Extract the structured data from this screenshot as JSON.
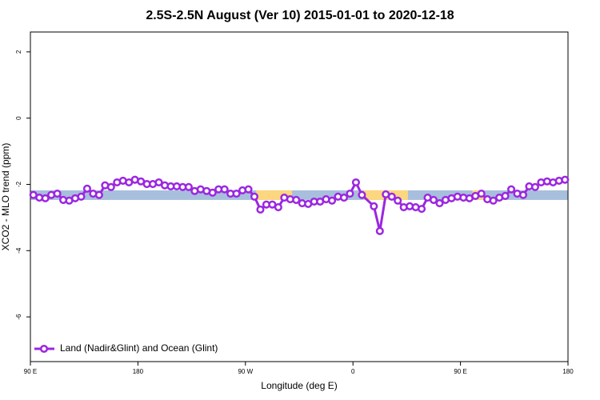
{
  "chart_data": {
    "type": "line",
    "title": "2.5S-2.5N August (Ver 10)   2015-01-01 to 2020-12-18",
    "x_label": "Longitude (deg E)",
    "y_label": "XCO2 - MLO trend (ppm)",
    "xlim": [
      90,
      540
    ],
    "ylim": [
      -7.35,
      2.6
    ],
    "xticks": [
      {
        "value": 90,
        "label": "90 E"
      },
      180,
      {
        "value": 270,
        "label": "90 W"
      },
      {
        "value": 360,
        "label": "0"
      },
      {
        "value": 450,
        "label": "90 E"
      },
      {
        "value": 540,
        "label": "180"
      }
    ],
    "yticks": [
      -6,
      -4,
      -2,
      0,
      2
    ],
    "band": {
      "ylim": [
        -2.18,
        -2.47
      ],
      "color": "#a7bfdc"
    },
    "highlight": {
      "color": "#fcd77f",
      "x_ranges": [
        [
          279,
          309
        ],
        [
          369,
          406
        ],
        [
          460,
          470
        ]
      ]
    },
    "legend": "bottom-left",
    "series": [
      {
        "name": "Land (Nadir&Glint) and Ocean (Glint)",
        "color": "#9b27e0",
        "x": [
          92.5,
          97.5,
          102.5,
          107.5,
          112.5,
          117.5,
          122.5,
          127.5,
          132.5,
          137.5,
          142.5,
          147.5,
          152.5,
          157.5,
          162.5,
          167.5,
          172.5,
          177.5,
          182.5,
          187.5,
          192.5,
          197.5,
          202.5,
          207.5,
          212.5,
          217.5,
          222.5,
          227.5,
          232.5,
          237.5,
          242.5,
          247.5,
          252.5,
          257.5,
          262.5,
          267.5,
          272.5,
          277.5,
          282.5,
          287.5,
          292.5,
          297.5,
          302.5,
          307.5,
          312.5,
          317.5,
          322.5,
          327.5,
          332.5,
          337.5,
          342.5,
          347.5,
          352.5,
          357.5,
          362.5,
          367.5,
          377.5,
          382.5,
          387.5,
          392.5,
          397.5,
          402.5,
          407.5,
          412.5,
          417.5,
          422.5,
          427.5,
          432.5,
          437.5,
          442.5,
          447.5,
          452.5,
          457.5,
          462.5,
          467.5,
          472.5,
          477.5,
          482.5,
          487.5,
          492.5,
          497.5,
          502.5,
          507.5,
          512.5,
          517.5,
          522.5,
          527.5,
          532.5,
          537.5
        ],
        "values": [
          -2.32,
          -2.4,
          -2.42,
          -2.32,
          -2.28,
          -2.47,
          -2.49,
          -2.42,
          -2.37,
          -2.13,
          -2.28,
          -2.32,
          -2.03,
          -2.08,
          -1.94,
          -1.89,
          -1.94,
          -1.86,
          -1.91,
          -1.99,
          -1.99,
          -1.94,
          -2.03,
          -2.06,
          -2.06,
          -2.08,
          -2.08,
          -2.2,
          -2.15,
          -2.2,
          -2.25,
          -2.15,
          -2.15,
          -2.28,
          -2.28,
          -2.18,
          -2.15,
          -2.37,
          -2.76,
          -2.61,
          -2.61,
          -2.69,
          -2.4,
          -2.45,
          -2.47,
          -2.57,
          -2.59,
          -2.52,
          -2.52,
          -2.45,
          -2.49,
          -2.37,
          -2.4,
          -2.28,
          -1.94,
          -2.32,
          -2.66,
          -3.41,
          -2.3,
          -2.37,
          -2.49,
          -2.69,
          -2.66,
          -2.69,
          -2.74,
          -2.4,
          -2.47,
          -2.57,
          -2.47,
          -2.42,
          -2.37,
          -2.4,
          -2.42,
          -2.35,
          -2.28,
          -2.45,
          -2.49,
          -2.4,
          -2.35,
          -2.15,
          -2.28,
          -2.32,
          -2.06,
          -2.08,
          -1.94,
          -1.91,
          -1.94,
          -1.89,
          -1.86
        ]
      }
    ]
  }
}
